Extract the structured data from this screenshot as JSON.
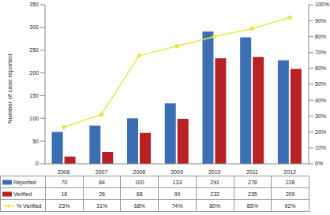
{
  "chart_data": {
    "type": "bar",
    "categories": [
      "2006",
      "2007",
      "2008",
      "2009",
      "2010",
      "2011",
      "2012"
    ],
    "series": [
      {
        "name": "Reported",
        "type": "bar",
        "color": "#3c6eb4",
        "values": [
          70,
          84,
          100,
          133,
          291,
          278,
          228
        ]
      },
      {
        "name": "Verified",
        "type": "bar",
        "color": "#b82225",
        "values": [
          16,
          26,
          68,
          99,
          232,
          235,
          209
        ]
      },
      {
        "name": "% Verified",
        "type": "line",
        "color": "#e8e84c",
        "marker": "circle",
        "axis": "y2",
        "values": [
          23,
          31,
          68,
          74,
          80,
          85,
          92
        ],
        "value_labels": [
          "23%",
          "31%",
          "68%",
          "74%",
          "80%",
          "85%",
          "92%"
        ]
      }
    ],
    "y_label": "Number of case reported",
    "ylim": [
      0,
      350
    ],
    "yticks": [
      0,
      50,
      100,
      150,
      200,
      250,
      300,
      350
    ],
    "y2lim": [
      0,
      100
    ],
    "y2ticks": [
      {
        "value": 0,
        "label": "0%"
      },
      {
        "value": 10,
        "label": "10%"
      },
      {
        "value": 20,
        "label": "20%"
      },
      {
        "value": 30,
        "label": "30%"
      },
      {
        "value": 40,
        "label": "40%"
      },
      {
        "value": 50,
        "label": "50%"
      },
      {
        "value": 60,
        "label": "60%"
      },
      {
        "value": 70,
        "label": "70%"
      },
      {
        "value": 80,
        "label": "80%"
      },
      {
        "value": 90,
        "label": "90%"
      },
      {
        "value": 100,
        "label": "100%"
      }
    ],
    "grid": false
  }
}
